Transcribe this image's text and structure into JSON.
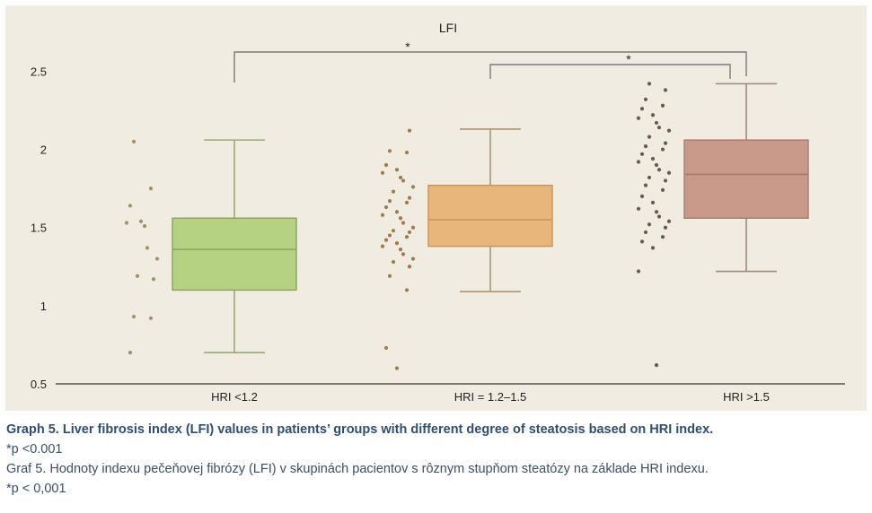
{
  "chart_data": {
    "type": "box",
    "title": "LFI",
    "xlabel": "",
    "ylabel": "",
    "ylim": [
      0.5,
      2.6
    ],
    "yticks": [
      "0.5",
      "1",
      "1.5",
      "2",
      "2.5"
    ],
    "ytick_values": [
      0.5,
      1,
      1.5,
      2,
      2.5
    ],
    "grid": false,
    "groups": [
      {
        "label": "HRI <1.2",
        "color": "#b5d182",
        "border": "#8aa35a",
        "whisker_color": "#9aaa73",
        "point_color": "#a3906a",
        "min": 0.7,
        "q1": 1.1,
        "median": 1.36,
        "q3": 1.56,
        "max": 2.06,
        "points": [
          2.05,
          1.75,
          1.64,
          1.54,
          1.53,
          1.51,
          1.37,
          1.3,
          1.19,
          1.17,
          0.93,
          0.92,
          0.7
        ]
      },
      {
        "label": "HRI = 1.2–1.5",
        "color": "#e8b57a",
        "border": "#c7935a",
        "whisker_color": "#b0956a",
        "point_color": "#a07a4a",
        "min": 1.09,
        "q1": 1.38,
        "median": 1.55,
        "q3": 1.77,
        "max": 2.13,
        "points": [
          2.12,
          1.99,
          1.98,
          1.9,
          1.87,
          1.85,
          1.82,
          1.8,
          1.76,
          1.73,
          1.69,
          1.67,
          1.66,
          1.63,
          1.6,
          1.58,
          1.56,
          1.53,
          1.5,
          1.48,
          1.47,
          1.45,
          1.44,
          1.42,
          1.4,
          1.38,
          1.36,
          1.33,
          1.3,
          1.28,
          1.25,
          1.19,
          1.1,
          0.73,
          0.6
        ]
      },
      {
        "label": "HRI >1.5",
        "color": "#c9998a",
        "border": "#a87a6c",
        "whisker_color": "#9a8a80",
        "point_color": "#6a5a4a",
        "min": 1.22,
        "q1": 1.56,
        "median": 1.84,
        "q3": 2.06,
        "max": 2.42,
        "points": [
          2.42,
          2.38,
          2.32,
          2.28,
          2.26,
          2.22,
          2.2,
          2.17,
          2.14,
          2.12,
          2.08,
          2.04,
          2.02,
          2.0,
          1.97,
          1.94,
          1.92,
          1.9,
          1.87,
          1.85,
          1.82,
          1.8,
          1.77,
          1.74,
          1.7,
          1.66,
          1.62,
          1.6,
          1.57,
          1.54,
          1.52,
          1.5,
          1.47,
          1.44,
          1.41,
          1.37,
          1.22,
          0.62
        ]
      }
    ],
    "annotations": [
      {
        "type": "significance-bracket",
        "from_group": 0,
        "to_group": 2,
        "label": "*"
      },
      {
        "type": "significance-bracket",
        "from_group": 1,
        "to_group": 2,
        "label": "*"
      }
    ]
  },
  "caption": {
    "title_en": "Graph 5. Liver fibrosis index (LFI) values in patients’ groups with different degree of steatosis based on HRI index.",
    "note_en": "*p <0.001",
    "title_sk": "Graf 5. Hodnoty indexu pečeňovej fibrózy (LFI) v skupinách pacientov s rôznym stupňom steatózy na základe HRI indexu.",
    "note_sk": "*p < 0,001"
  }
}
